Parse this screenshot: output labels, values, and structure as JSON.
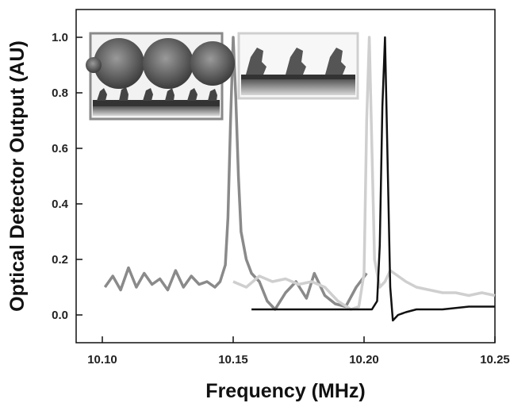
{
  "chart_data": {
    "type": "line",
    "title": "",
    "xlabel": "Frequency (MHz)",
    "ylabel": "Optical Detector Output (AU)",
    "xlim": [
      10.09,
      10.25
    ],
    "ylim": [
      -0.1,
      1.1
    ],
    "x_ticks": [
      "10.10",
      "10.15",
      "10.20",
      "10.25"
    ],
    "y_ticks": [
      "0.0",
      "0.2",
      "0.4",
      "0.6",
      "0.8",
      "1.0"
    ],
    "x_tick_values": [
      10.1,
      10.15,
      10.2,
      10.25
    ],
    "y_tick_values": [
      0.0,
      0.2,
      0.4,
      0.6,
      0.8,
      1.0
    ],
    "grid": false,
    "legend": "none",
    "series": [
      {
        "color": "#8a8a8a",
        "x": [
          10.101,
          10.104,
          10.107,
          10.11,
          10.113,
          10.116,
          10.119,
          10.122,
          10.125,
          10.128,
          10.131,
          10.134,
          10.137,
          10.14,
          10.143,
          10.145,
          10.147,
          10.148,
          10.149,
          10.15,
          10.151,
          10.152,
          10.153,
          10.155,
          10.157,
          10.16,
          10.163,
          10.166,
          10.17,
          10.174,
          10.178,
          10.181,
          10.185,
          10.189,
          10.193,
          10.197,
          10.201
        ],
        "y": [
          0.1,
          0.14,
          0.09,
          0.17,
          0.1,
          0.15,
          0.11,
          0.13,
          0.09,
          0.16,
          0.1,
          0.14,
          0.11,
          0.12,
          0.1,
          0.12,
          0.18,
          0.35,
          0.7,
          1.0,
          0.78,
          0.5,
          0.3,
          0.2,
          0.15,
          0.12,
          0.05,
          0.02,
          0.08,
          0.12,
          0.06,
          0.15,
          0.07,
          0.04,
          0.03,
          0.1,
          0.15
        ]
      },
      {
        "color": "#cfcfcf",
        "x": [
          10.15,
          10.155,
          10.16,
          10.165,
          10.17,
          10.175,
          10.18,
          10.185,
          10.19,
          10.195,
          10.198,
          10.2,
          10.201,
          10.202,
          10.203,
          10.204,
          10.206,
          10.208,
          10.21,
          10.213,
          10.216,
          10.22,
          10.225,
          10.23,
          10.235,
          10.24,
          10.245,
          10.25
        ],
        "y": [
          0.12,
          0.1,
          0.14,
          0.12,
          0.13,
          0.11,
          0.12,
          0.1,
          0.05,
          0.02,
          0.03,
          0.15,
          0.7,
          1.0,
          0.6,
          0.2,
          0.1,
          0.12,
          0.16,
          0.14,
          0.12,
          0.1,
          0.09,
          0.08,
          0.08,
          0.07,
          0.08,
          0.07
        ]
      },
      {
        "color": "#111111",
        "x": [
          10.157,
          10.165,
          10.175,
          10.185,
          10.195,
          10.2,
          10.203,
          10.205,
          10.206,
          10.207,
          10.208,
          10.209,
          10.21,
          10.211,
          10.213,
          10.216,
          10.22,
          10.23,
          10.24,
          10.25
        ],
        "y": [
          0.02,
          0.02,
          0.02,
          0.02,
          0.02,
          0.02,
          0.02,
          0.05,
          0.25,
          0.75,
          1.0,
          0.55,
          0.1,
          -0.02,
          0.0,
          0.01,
          0.02,
          0.02,
          0.03,
          0.03
        ]
      }
    ]
  },
  "insets": [
    {
      "name": "bound-protein-complex-illustration",
      "border_color": "#8a8a8a"
    },
    {
      "name": "bare-surface-protein-illustration",
      "border_color": "#cfcfcf"
    }
  ]
}
